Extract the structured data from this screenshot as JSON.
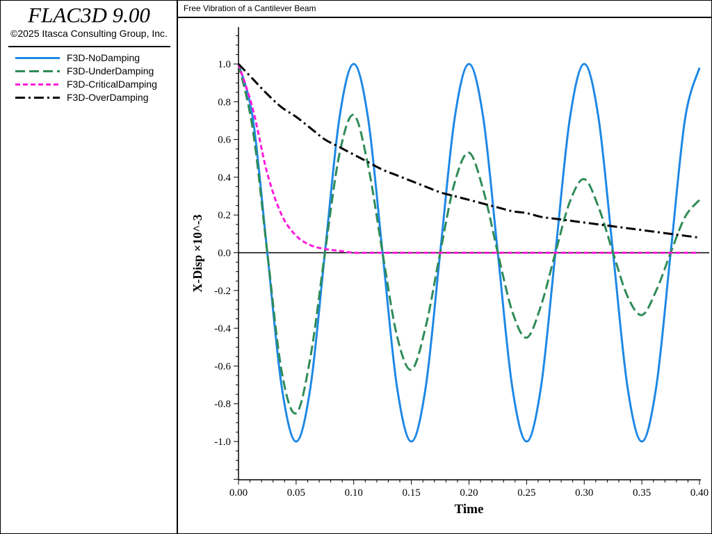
{
  "header": {
    "app_title": "FLAC3D 9.00",
    "copyright": "©2025 Itasca Consulting Group, Inc.",
    "plot_title": "Free Vibration of a Cantilever Beam"
  },
  "legend": {
    "items": [
      {
        "label": "F3D-NoDamping",
        "color": "#1e88e5",
        "dash": "solid"
      },
      {
        "label": "F3D-UnderDamping",
        "color": "#2e8b57",
        "dash": "long-dash"
      },
      {
        "label": "F3D-CriticalDamping",
        "color": "#ff1ad9",
        "dash": "short-dash"
      },
      {
        "label": "F3D-OverDamping",
        "color": "#000000",
        "dash": "dash-dot"
      }
    ]
  },
  "chart_data": {
    "type": "line",
    "xlabel": "Time",
    "ylabel": "X-Disp ×10^-3",
    "xlim": [
      0,
      0.4
    ],
    "ylim": [
      -1.2,
      1.2
    ],
    "xticks": [
      "0.00",
      "0.05",
      "0.10",
      "0.15",
      "0.20",
      "0.25",
      "0.30",
      "0.35",
      "0.40"
    ],
    "yticks": [
      "1.0",
      "0.8",
      "0.6",
      "0.4",
      "0.2",
      "0.0",
      "-0.2",
      "-0.4",
      "-0.6",
      "-0.8",
      "-1.0"
    ],
    "zero_line": true,
    "legend_position": "left-panel",
    "x": [
      0.0,
      0.0125,
      0.025,
      0.0375,
      0.05,
      0.0625,
      0.075,
      0.0875,
      0.1,
      0.1125,
      0.125,
      0.1375,
      0.15,
      0.1625,
      0.175,
      0.1875,
      0.2,
      0.2125,
      0.225,
      0.2375,
      0.25,
      0.2625,
      0.275,
      0.2875,
      0.3,
      0.3125,
      0.325,
      0.3375,
      0.35,
      0.3625,
      0.375,
      0.3875,
      0.4
    ],
    "series": [
      {
        "name": "F3D-NoDamping",
        "color": "#1e88e5",
        "values": [
          1.0,
          0.71,
          0.0,
          -0.71,
          -1.0,
          -0.71,
          0.0,
          0.71,
          1.0,
          0.71,
          0.0,
          -0.71,
          -1.0,
          -0.71,
          0.0,
          0.71,
          1.0,
          0.71,
          0.0,
          -0.71,
          -1.0,
          -0.71,
          0.0,
          0.71,
          1.0,
          0.71,
          0.0,
          -0.71,
          -1.0,
          -0.71,
          0.0,
          0.71,
          0.98
        ]
      },
      {
        "name": "F3D-UnderDamping",
        "color": "#2e8b57",
        "values": [
          1.0,
          0.65,
          0.0,
          -0.63,
          -0.85,
          -0.55,
          0.0,
          0.52,
          0.73,
          0.46,
          0.0,
          -0.44,
          -0.62,
          -0.39,
          0.0,
          0.37,
          0.53,
          0.33,
          0.0,
          -0.31,
          -0.45,
          -0.28,
          0.0,
          0.27,
          0.39,
          0.24,
          0.0,
          -0.23,
          -0.33,
          -0.2,
          0.0,
          0.19,
          0.28
        ]
      },
      {
        "name": "F3D-CriticalDamping",
        "color": "#ff1ad9",
        "values": [
          1.0,
          0.76,
          0.42,
          0.2,
          0.09,
          0.04,
          0.02,
          0.01,
          0.0,
          0.0,
          0.0,
          0.0,
          0.0,
          0.0,
          0.0,
          0.0,
          0.0,
          0.0,
          0.0,
          0.0,
          0.0,
          0.0,
          0.0,
          0.0,
          0.0,
          0.0,
          0.0,
          0.0,
          0.0,
          0.0,
          0.0,
          0.0,
          0.0
        ]
      },
      {
        "name": "F3D-OverDamping",
        "color": "#000000",
        "values": [
          1.0,
          0.92,
          0.84,
          0.77,
          0.72,
          0.66,
          0.6,
          0.56,
          0.52,
          0.48,
          0.44,
          0.41,
          0.38,
          0.35,
          0.32,
          0.3,
          0.28,
          0.26,
          0.24,
          0.22,
          0.21,
          0.19,
          0.18,
          0.17,
          0.16,
          0.15,
          0.14,
          0.13,
          0.12,
          0.11,
          0.1,
          0.09,
          0.08
        ]
      }
    ]
  }
}
